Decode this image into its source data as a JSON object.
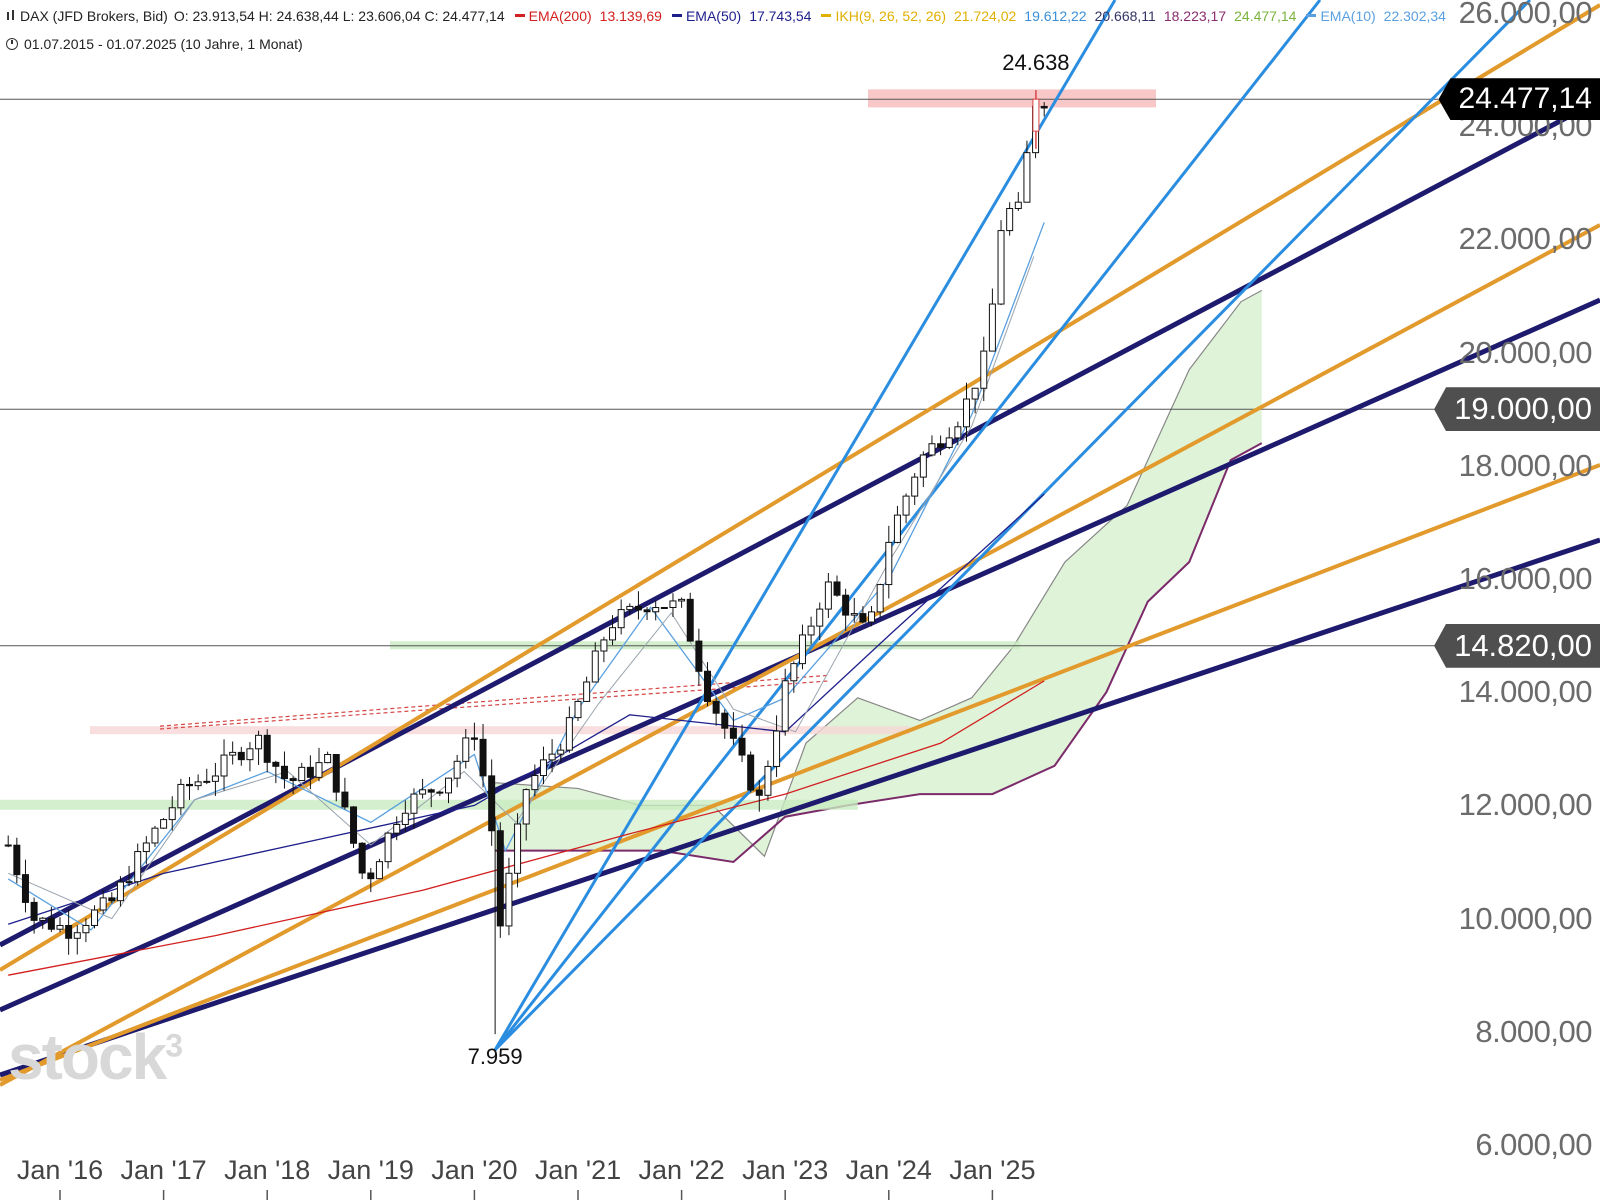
{
  "header": {
    "symbol": "DAX (JFD Brokers, Bid)",
    "ohlc": "O: 23.913,54  H: 24.638,44  L: 23.606,04  C: 24.477,14",
    "indicators": [
      {
        "label": "EMA(200)",
        "value": "13.139,69",
        "color": "#d21f1f"
      },
      {
        "label": "EMA(50)",
        "value": "17.743,54",
        "color": "#1e1e8c"
      },
      {
        "label": "IKH(9, 26, 52, 26)",
        "value": "21.724,02",
        "color": "#e0b000"
      },
      {
        "label": "",
        "value": "19.612,22",
        "color": "#3a8fd8"
      },
      {
        "label": "",
        "value": "20.668,11",
        "color": "#333366"
      },
      {
        "label": "",
        "value": "18.223,17",
        "color": "#8b2c6e"
      },
      {
        "label": "",
        "value": "24.477,14",
        "color": "#7ab33c"
      },
      {
        "label": "EMA(10)",
        "value": "22.302,34",
        "color": "#5aa0e0"
      }
    ],
    "range": "01.07.2015 - 01.07.2025  (10 Jahre, 1 Monat)"
  },
  "watermark": "stock",
  "watermark_sup": "3",
  "markers": {
    "last_price": "24.477,14",
    "level_19000": "19.000,00",
    "level_14820": "14.820,00"
  },
  "annotations": {
    "peak": "24.638",
    "low": "7.959"
  },
  "chart_data": {
    "type": "candlestick",
    "title": "DAX (JFD Brokers, Bid)",
    "interval": "1 Monat",
    "period": "01.07.2015 - 01.07.2025",
    "ylim": [
      6000,
      26500
    ],
    "y_ticks": [
      6000,
      8000,
      10000,
      12000,
      14000,
      16000,
      18000,
      20000,
      22000,
      24000,
      26000
    ],
    "y_tick_labels": [
      "6.000,00",
      "8.000,00",
      "10.000,00",
      "12.000,00",
      "14.000,00",
      "16.000,00",
      "18.000,00",
      "20.000,00",
      "22.000,00",
      "24.000,00",
      "26.000,00"
    ],
    "x_ticks": [
      2016,
      2017,
      2018,
      2019,
      2020,
      2021,
      2022,
      2023,
      2024,
      2025
    ],
    "x_tick_labels": [
      "Jan '16",
      "Jan '17",
      "Jan '18",
      "Jan '19",
      "Jan '20",
      "Jan '21",
      "Jan '22",
      "Jan '23",
      "Jan '24",
      "Jan '25"
    ],
    "xlim": [
      2015.5,
      2030.6
    ],
    "horizontal_levels": [
      24477.14,
      19000,
      14820
    ],
    "extremes": [
      {
        "date": 2020.2,
        "value": 7959,
        "label": "7.959"
      },
      {
        "date": 2025.42,
        "value": 24638,
        "label": "24.638"
      }
    ],
    "last_ohlc": {
      "open": 23913.54,
      "high": 24638.44,
      "low": 23606.04,
      "close": 24477.14
    },
    "close_path": [
      [
        2015.5,
        11300
      ],
      [
        2015.75,
        10000
      ],
      [
        2016.1,
        9800
      ],
      [
        2016.5,
        10300
      ],
      [
        2016.9,
        11500
      ],
      [
        2017.2,
        12300
      ],
      [
        2017.5,
        12600
      ],
      [
        2017.9,
        13200
      ],
      [
        2018.2,
        12400
      ],
      [
        2018.6,
        12800
      ],
      [
        2018.95,
        10600
      ],
      [
        2019.3,
        12000
      ],
      [
        2019.7,
        12400
      ],
      [
        2020.0,
        13300
      ],
      [
        2020.15,
        11900
      ],
      [
        2020.25,
        9900
      ],
      [
        2020.5,
        12300
      ],
      [
        2020.9,
        13300
      ],
      [
        2021.3,
        15200
      ],
      [
        2021.7,
        15600
      ],
      [
        2022.0,
        15500
      ],
      [
        2022.25,
        14000
      ],
      [
        2022.75,
        12100
      ],
      [
        2023.0,
        14100
      ],
      [
        2023.4,
        15900
      ],
      [
        2023.8,
        15000
      ],
      [
        2024.0,
        16700
      ],
      [
        2024.3,
        18100
      ],
      [
        2024.7,
        18900
      ],
      [
        2024.95,
        20000
      ],
      [
        2025.1,
        22500
      ],
      [
        2025.25,
        22500
      ],
      [
        2025.42,
        24477
      ]
    ],
    "overlays": [
      {
        "name": "EMA(200)",
        "color": "#d21f1f",
        "points": [
          [
            2015.5,
            9000
          ],
          [
            2017.5,
            9700
          ],
          [
            2019.5,
            10500
          ],
          [
            2021.5,
            11500
          ],
          [
            2023.0,
            12200
          ],
          [
            2024.5,
            13100
          ],
          [
            2025.5,
            14200
          ]
        ]
      },
      {
        "name": "EMA(50)",
        "color": "#1e1e8c",
        "points": [
          [
            2015.5,
            9900
          ],
          [
            2017.0,
            10800
          ],
          [
            2018.5,
            11400
          ],
          [
            2020.0,
            12000
          ],
          [
            2021.5,
            13600
          ],
          [
            2023.0,
            13300
          ],
          [
            2024.0,
            15000
          ],
          [
            2025.5,
            17500
          ]
        ]
      },
      {
        "name": "EMA(10)",
        "color": "#5aa0e0",
        "points": [
          [
            2015.5,
            10700
          ],
          [
            2016.3,
            9800
          ],
          [
            2017.3,
            12100
          ],
          [
            2018.0,
            12600
          ],
          [
            2019.0,
            11700
          ],
          [
            2020.0,
            12900
          ],
          [
            2020.3,
            11200
          ],
          [
            2021.0,
            13700
          ],
          [
            2021.7,
            15500
          ],
          [
            2022.5,
            13500
          ],
          [
            2023.0,
            13900
          ],
          [
            2024.0,
            16000
          ],
          [
            2024.8,
            18900
          ],
          [
            2025.5,
            22300
          ]
        ]
      }
    ]
  }
}
